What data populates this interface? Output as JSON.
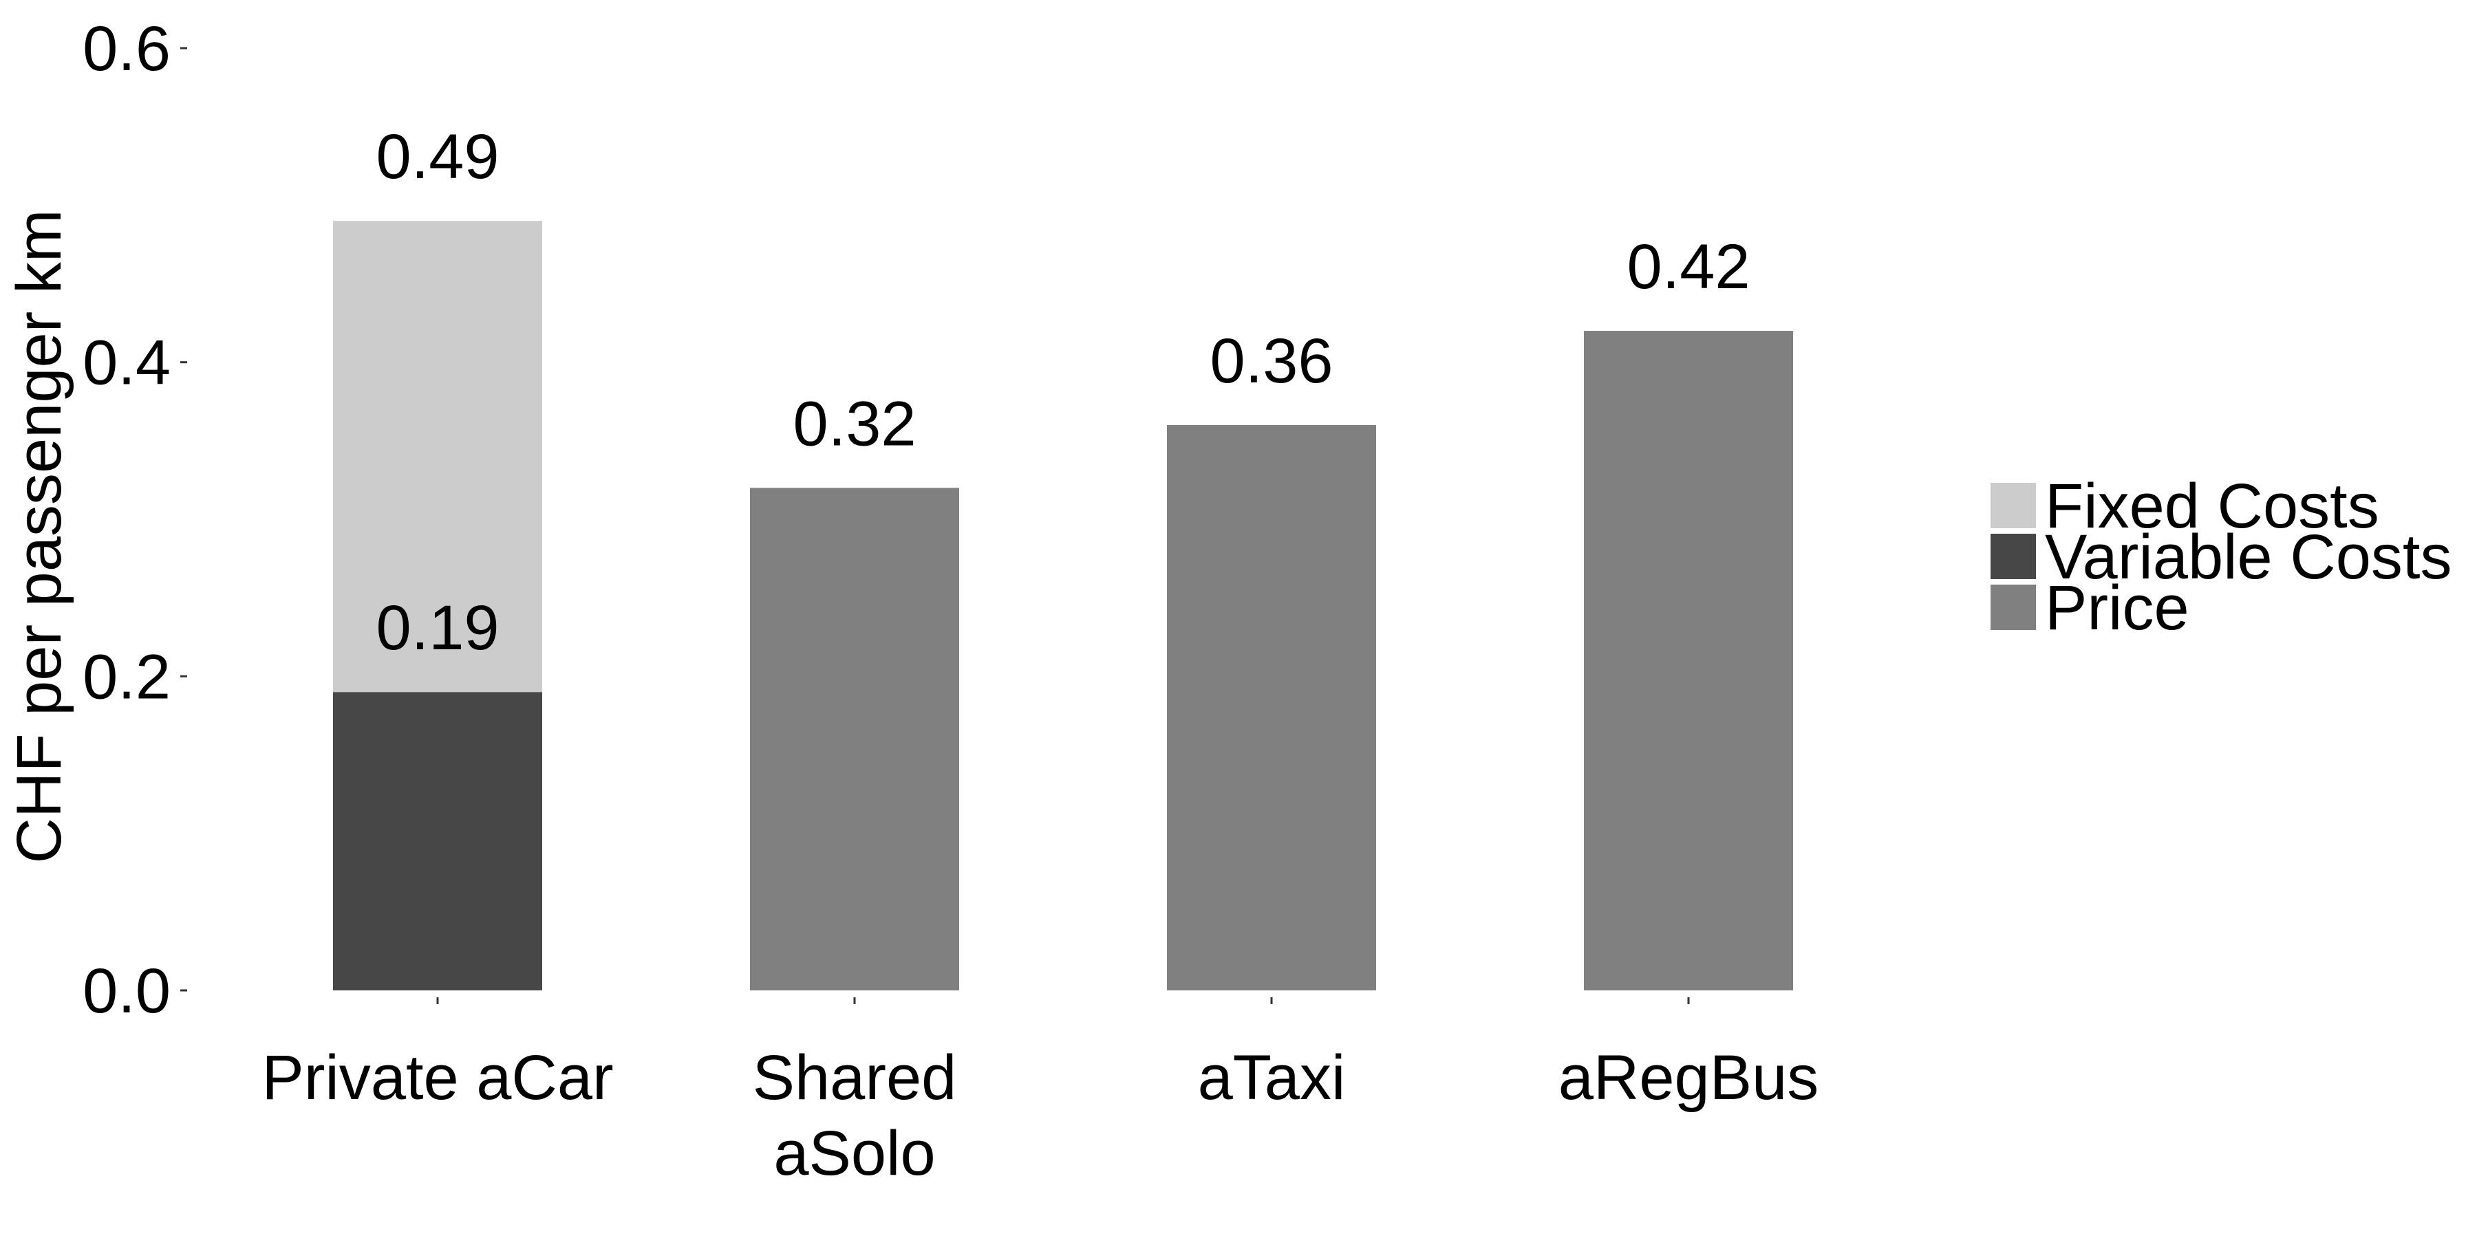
{
  "chart_data": {
    "type": "bar",
    "stacked": true,
    "title": "",
    "xlabel": "",
    "ylabel": "CHF per passenger km",
    "ylim": [
      0,
      0.6
    ],
    "yticks": [
      "0.0",
      "0.2",
      "0.4",
      "0.6"
    ],
    "grid": false,
    "legend_position": "right",
    "categories": [
      [
        "Private aCar"
      ],
      [
        "Shared",
        "aSolo"
      ],
      [
        "aTaxi"
      ],
      [
        "aRegBus"
      ]
    ],
    "series": [
      {
        "name": "Variable Costs",
        "color": "#474747",
        "values": [
          0.19,
          0,
          0,
          0
        ]
      },
      {
        "name": "Fixed Costs",
        "color": "#cccccc",
        "values": [
          0.3,
          0,
          0,
          0
        ]
      },
      {
        "name": "Price",
        "color": "#808080",
        "values": [
          0,
          0.32,
          0.36,
          0.42
        ]
      }
    ],
    "legend_order": [
      "Fixed Costs",
      "Variable Costs",
      "Price"
    ],
    "data_labels": [
      {
        "category_index": 0,
        "value": 0.49,
        "text": "0.49"
      },
      {
        "category_index": 0,
        "value": 0.19,
        "text": "0.19"
      },
      {
        "category_index": 1,
        "value": 0.32,
        "text": "0.32"
      },
      {
        "category_index": 2,
        "value": 0.36,
        "text": "0.36"
      },
      {
        "category_index": 3,
        "value": 0.42,
        "text": "0.42"
      }
    ]
  }
}
